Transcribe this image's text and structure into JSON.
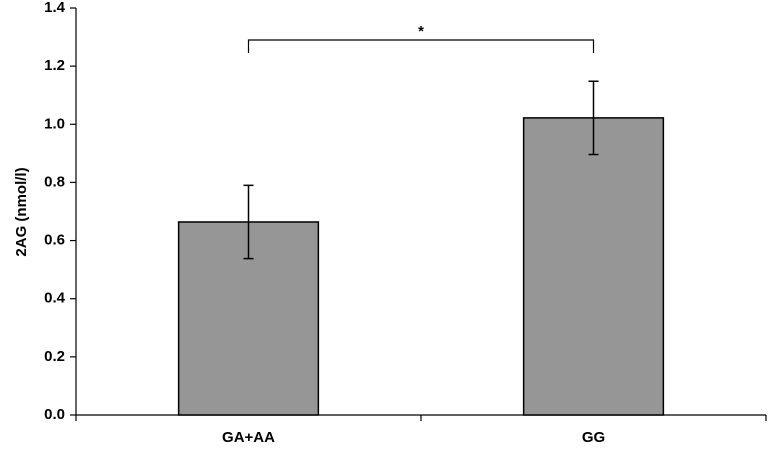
{
  "chart_data": {
    "type": "bar",
    "title": "",
    "xlabel": "",
    "ylabel": "2AG (nmol/l)",
    "categories": [
      "GA+AA",
      "GG"
    ],
    "values": [
      0.664,
      1.022
    ],
    "errors": [
      0.126,
      0.126
    ],
    "ylim": [
      0,
      1.4
    ],
    "yticks": [
      "0.0",
      "0.2",
      "0.4",
      "0.6",
      "0.8",
      "1.0",
      "1.2",
      "1.4"
    ],
    "grid": false,
    "bar_color": "#969696",
    "significance": {
      "between": [
        0,
        1
      ],
      "label": "*",
      "level": 1.29
    }
  }
}
